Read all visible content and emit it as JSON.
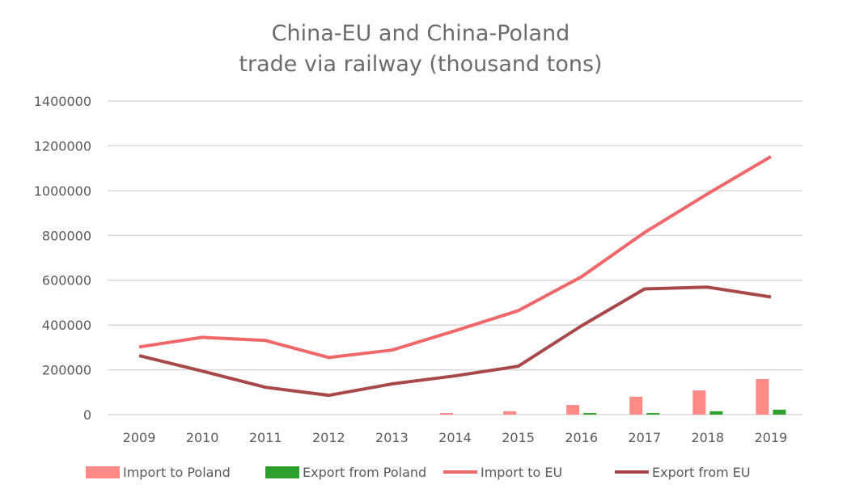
{
  "chart_data": {
    "type": "bar+line",
    "title": [
      "China-EU and China-Poland",
      "trade via railway (thousand tons)"
    ],
    "xlabel": "",
    "ylabel": "",
    "categories": [
      "2009",
      "2010",
      "2011",
      "2012",
      "2013",
      "2014",
      "2015",
      "2016",
      "2017",
      "2018",
      "2019"
    ],
    "ylim": [
      0,
      1400000
    ],
    "yticks": [
      "0",
      "200000",
      "400000",
      "600000",
      "800000",
      "1000000",
      "1200000",
      "1400000"
    ],
    "grid": true,
    "legend_position": "bottom",
    "series": [
      {
        "name": "Import to Poland",
        "type": "bar",
        "color": "#ff8a86",
        "values": [
          0,
          0,
          0,
          0,
          0,
          7000,
          15000,
          43000,
          80000,
          108000,
          159000
        ]
      },
      {
        "name": "Export from Poland",
        "type": "bar",
        "color": "#2ea02e",
        "values": [
          0,
          0,
          0,
          0,
          0,
          0,
          0,
          7000,
          7000,
          15000,
          22000
        ]
      },
      {
        "name": "Import to EU",
        "type": "line",
        "color": "#f0676a",
        "values": [
          302000,
          345000,
          331000,
          255000,
          288000,
          374000,
          464000,
          615000,
          813000,
          986000,
          1152000
        ]
      },
      {
        "name": "Export from EU",
        "type": "line",
        "color": "#a84848",
        "values": [
          263000,
          194000,
          122000,
          86000,
          137000,
          173000,
          216000,
          396000,
          561000,
          569000,
          525000
        ]
      }
    ]
  }
}
